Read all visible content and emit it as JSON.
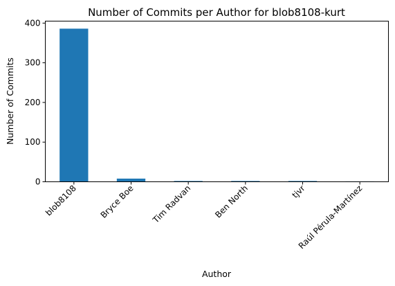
{
  "chart_data": {
    "type": "bar",
    "title": "Number of Commits per Author for blob8108-kurt",
    "xlabel": "Author",
    "ylabel": "Number of Commits",
    "categories": [
      "blob8108",
      "Bryce Boe",
      "Tim Radvan",
      "Ben North",
      "tjvr",
      "Raúl Pérula-Martínez"
    ],
    "values": [
      386,
      8,
      2,
      2,
      2,
      1
    ],
    "ylim": [
      0,
      405
    ],
    "yticks": [
      0,
      100,
      200,
      300,
      400
    ],
    "bar_color": "#1f77b4",
    "grid": false,
    "legend": "none"
  }
}
